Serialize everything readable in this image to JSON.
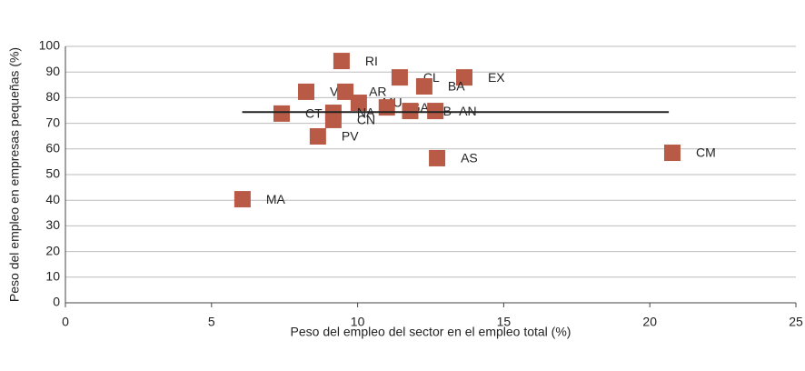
{
  "chart_data": {
    "type": "scatter",
    "x_label": "Peso del empleo del sector en el empleo total (%)",
    "y_label": "Peso del empleo en empresas pequeñas (%)",
    "point_labels": [
      "RI",
      "CL",
      "EX",
      "BA",
      "VA",
      "AR",
      "MU",
      "GA",
      "CB",
      "AN",
      "NA",
      "CN",
      "CT",
      "PV",
      "AS",
      "CM",
      "MA"
    ],
    "x": [
      9.45,
      11.44,
      13.65,
      12.28,
      8.24,
      9.58,
      10.04,
      11.0,
      11.8,
      12.66,
      9.17,
      9.17,
      7.4,
      8.64,
      12.72,
      20.77,
      6.06
    ],
    "values": [
      94.3,
      87.9,
      87.9,
      84.4,
      82.3,
      82.3,
      78.0,
      76.2,
      74.8,
      74.8,
      74.1,
      71.3,
      73.8,
      64.9,
      56.4,
      58.5,
      40.4
    ],
    "color": "#b85a45",
    "reference_line": {
      "x": [
        6.05,
        20.65
      ],
      "y": 74.4,
      "color": "#222222"
    },
    "xlim": [
      0,
      25
    ],
    "xticks": [
      0,
      5,
      10,
      15,
      20,
      25
    ],
    "ylim": [
      0,
      100
    ],
    "yticks": [
      0,
      10,
      20,
      30,
      40,
      50,
      60,
      70,
      80,
      90,
      100
    ],
    "grid": true
  }
}
